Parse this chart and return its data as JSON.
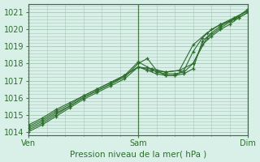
{
  "title": "",
  "xlabel": "Pression niveau de la mer( hPa )",
  "ylabel": "",
  "bg_color": "#d8f0e8",
  "grid_color": "#a8c8b8",
  "line_color": "#2d6e2d",
  "marker_color": "#2d6e2d",
  "ylim": [
    1013.8,
    1021.5
  ],
  "yticks": [
    1014,
    1015,
    1016,
    1017,
    1018,
    1019,
    1020,
    1021
  ],
  "xlim": [
    0,
    48
  ],
  "xtick_positions": [
    0,
    24,
    48
  ],
  "xtick_labels": [
    "Ven",
    "Sam",
    "Dim"
  ],
  "vlines": [
    0,
    24,
    48
  ],
  "series": [
    {
      "x": [
        0,
        3,
        6,
        9,
        12,
        15,
        18,
        21,
        24,
        26,
        28,
        30,
        32,
        34,
        36,
        38,
        40,
        42,
        44,
        46,
        48
      ],
      "y": [
        1014.1,
        1014.5,
        1015.0,
        1015.5,
        1016.0,
        1016.4,
        1016.8,
        1017.2,
        1018.0,
        1018.3,
        1017.6,
        1017.3,
        1017.3,
        1017.4,
        1017.7,
        1019.3,
        1019.8,
        1020.2,
        1020.5,
        1020.8,
        1021.1
      ]
    },
    {
      "x": [
        0,
        3,
        6,
        9,
        12,
        15,
        18,
        21,
        24,
        26,
        28,
        30,
        32,
        34,
        36,
        38,
        40,
        42,
        44,
        46,
        48
      ],
      "y": [
        1014.2,
        1014.6,
        1015.1,
        1015.5,
        1016.0,
        1016.4,
        1016.8,
        1017.3,
        1018.1,
        1017.8,
        1017.5,
        1017.4,
        1017.4,
        1017.5,
        1018.0,
        1019.1,
        1019.6,
        1020.0,
        1020.3,
        1020.7,
        1021.0
      ]
    },
    {
      "x": [
        0,
        3,
        6,
        9,
        12,
        15,
        18,
        21,
        24,
        26,
        28,
        30,
        32,
        34,
        36,
        38,
        40,
        42,
        44,
        46,
        48
      ],
      "y": [
        1014.0,
        1014.4,
        1014.9,
        1015.4,
        1015.9,
        1016.3,
        1016.7,
        1017.1,
        1017.8,
        1017.6,
        1017.4,
        1017.3,
        1017.3,
        1017.6,
        1018.7,
        1019.5,
        1020.0,
        1020.3,
        1020.5,
        1020.7,
        1021.0
      ]
    },
    {
      "x": [
        0,
        3,
        6,
        9,
        12,
        15,
        18,
        21,
        24,
        27,
        30,
        33,
        36,
        39,
        42,
        45,
        48
      ],
      "y": [
        1014.3,
        1014.7,
        1015.2,
        1015.6,
        1016.1,
        1016.5,
        1016.9,
        1017.3,
        1017.8,
        1017.6,
        1017.5,
        1017.6,
        1018.0,
        1019.5,
        1020.1,
        1020.6,
        1021.2
      ]
    },
    {
      "x": [
        0,
        3,
        6,
        9,
        12,
        15,
        18,
        21,
        24,
        27,
        30,
        33,
        36,
        39,
        42,
        45,
        48
      ],
      "y": [
        1014.4,
        1014.8,
        1015.3,
        1015.7,
        1016.1,
        1016.5,
        1016.9,
        1017.3,
        1017.8,
        1017.7,
        1017.5,
        1017.6,
        1019.1,
        1019.8,
        1020.3,
        1020.7,
        1021.1
      ]
    }
  ]
}
